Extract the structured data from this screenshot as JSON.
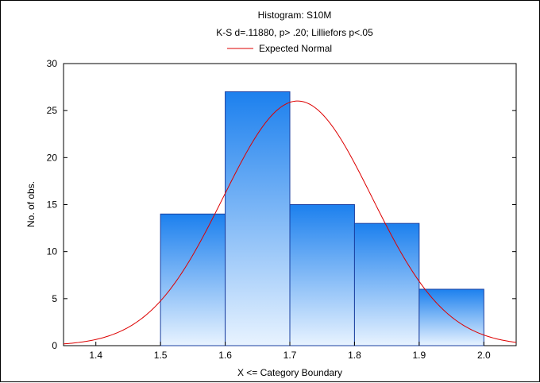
{
  "chart_data": {
    "type": "bar",
    "title": "Histogram: S10M",
    "subtitle": "K-S d=.11880, p> .20; Lilliefors p<.05",
    "xlabel": "X <= Category Boundary",
    "ylabel": "No. of obs.",
    "legend": {
      "position": "top-center",
      "entries": [
        "Expected Normal"
      ]
    },
    "xlim": [
      1.35,
      2.05
    ],
    "ylim": [
      0,
      30
    ],
    "x_ticks": [
      "1.4",
      "1.5",
      "1.6",
      "1.7",
      "1.8",
      "1.9",
      "2.0"
    ],
    "y_ticks": [
      "0",
      "5",
      "10",
      "15",
      "20",
      "25",
      "30"
    ],
    "bins": [
      {
        "from": 1.5,
        "to": 1.6,
        "count": 14
      },
      {
        "from": 1.6,
        "to": 1.7,
        "count": 27
      },
      {
        "from": 1.7,
        "to": 1.8,
        "count": 15
      },
      {
        "from": 1.8,
        "to": 1.9,
        "count": 13
      },
      {
        "from": 1.9,
        "to": 2.0,
        "count": 6
      }
    ],
    "expected_normal": {
      "mean": 1.712,
      "sd": 0.115,
      "n": 75,
      "bin_width": 0.1
    },
    "colors": {
      "bar_top": "#1c80ee",
      "bar_bottom": "#e8f3ff",
      "bar_border": "#1a3fa0",
      "curve": "#dd0000"
    }
  }
}
